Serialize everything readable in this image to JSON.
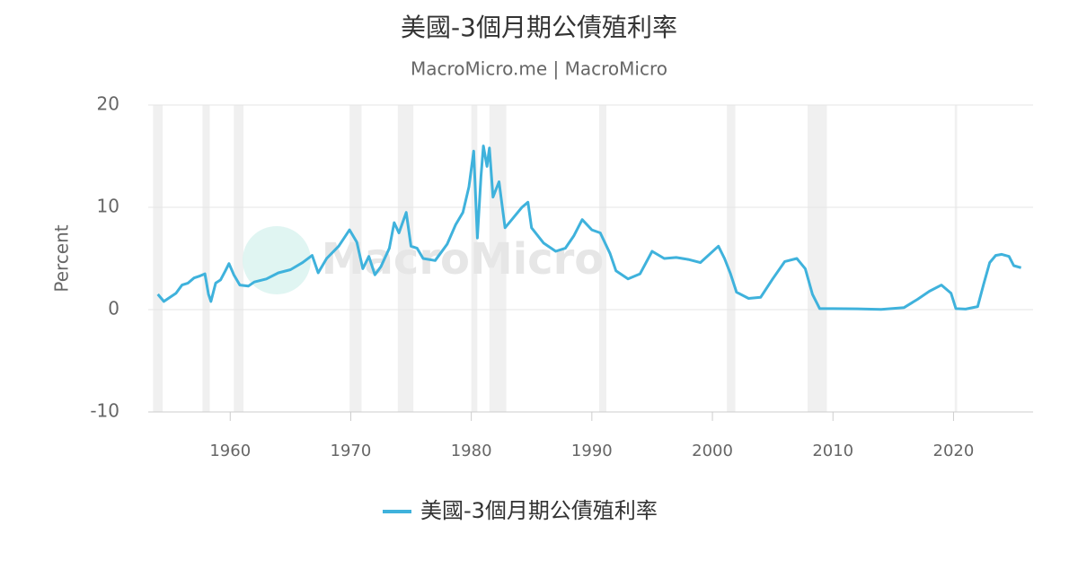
{
  "chart_data": {
    "type": "line",
    "title": "美國-3個月期公債殖利率",
    "subtitle": "MacroMicro.me | MacroMicro",
    "watermark": "MacroMicro",
    "ylabel": "Percent",
    "xlim": [
      1953.2,
      2026.6
    ],
    "xticks": [
      1960,
      1970,
      1980,
      1990,
      2000,
      2010,
      2020
    ],
    "ylim": [
      -10,
      20
    ],
    "yticks": [
      -10,
      0,
      10,
      20
    ],
    "grid": true,
    "legend": "bottom",
    "recessions": [
      [
        1953.6,
        1954.4
      ],
      [
        1957.7,
        1958.3
      ],
      [
        1960.3,
        1961.1
      ],
      [
        1969.9,
        1970.9
      ],
      [
        1973.9,
        1975.2
      ],
      [
        1980.0,
        1980.5
      ],
      [
        1981.5,
        1982.9
      ],
      [
        1990.6,
        1991.2
      ],
      [
        2001.2,
        2001.9
      ],
      [
        2007.9,
        2009.5
      ],
      [
        2020.1,
        2020.3
      ]
    ],
    "recession_color": "#f0f0f0",
    "x": [
      1954.0,
      1954.5,
      1955.0,
      1955.5,
      1956,
      1956.5,
      1957,
      1957.5,
      1957.9,
      1958.2,
      1958.4,
      1958.8,
      1959.2,
      1959.6,
      1959.9,
      1960.3,
      1960.8,
      1961.5,
      1962,
      1963,
      1964,
      1965,
      1966,
      1966.8,
      1967.3,
      1968,
      1969,
      1969.9,
      1970.5,
      1971,
      1971.5,
      1972,
      1972.5,
      1973.2,
      1973.6,
      1974.0,
      1974.6,
      1975.0,
      1975.5,
      1976,
      1977,
      1977.5,
      1978,
      1978.7,
      1979.3,
      1979.8,
      1980.2,
      1980.5,
      1980.8,
      1981.0,
      1981.3,
      1981.5,
      1981.8,
      1982.3,
      1982.8,
      1983.5,
      1984.2,
      1984.7,
      1985,
      1986,
      1987,
      1987.8,
      1988.5,
      1989.2,
      1990,
      1990.7,
      1991.5,
      1992,
      1993,
      1994,
      1995,
      1996,
      1997,
      1998,
      1999,
      2000.5,
      2001,
      2001.5,
      2002,
      2003,
      2004,
      2005,
      2006,
      2007,
      2007.7,
      2008.3,
      2008.9,
      2010,
      2012,
      2014,
      2015.9,
      2017,
      2018,
      2019,
      2019.8,
      2020.2,
      2021,
      2022,
      2022.5,
      2023,
      2023.5,
      2024,
      2024.6,
      2025,
      2025.6
    ],
    "series": [
      {
        "name": "美國-3個月期公債殖利率",
        "color": "#3fb2dc",
        "values": [
          1.5,
          0.8,
          1.2,
          1.6,
          2.4,
          2.6,
          3.1,
          3.3,
          3.5,
          1.5,
          0.8,
          2.6,
          2.9,
          3.8,
          4.5,
          3.4,
          2.4,
          2.3,
          2.7,
          3.0,
          3.6,
          3.9,
          4.6,
          5.3,
          3.6,
          5.0,
          6.2,
          7.8,
          6.6,
          4.0,
          5.2,
          3.4,
          4.2,
          6.0,
          8.5,
          7.5,
          9.5,
          6.2,
          6.0,
          5.0,
          4.8,
          5.6,
          6.4,
          8.3,
          9.5,
          12.0,
          15.5,
          7.0,
          13.0,
          16.0,
          14.0,
          15.8,
          11.0,
          12.5,
          8.0,
          9.0,
          10.0,
          10.5,
          8.0,
          6.5,
          5.7,
          6.0,
          7.2,
          8.8,
          7.8,
          7.5,
          5.5,
          3.8,
          3.0,
          3.5,
          5.7,
          5.0,
          5.1,
          4.9,
          4.6,
          6.2,
          5.0,
          3.5,
          1.7,
          1.1,
          1.2,
          3.0,
          4.7,
          5.0,
          4.0,
          1.5,
          0.1,
          0.1,
          0.08,
          0.03,
          0.2,
          1.0,
          1.8,
          2.4,
          1.6,
          0.1,
          0.05,
          0.3,
          2.5,
          4.6,
          5.3,
          5.4,
          5.2,
          4.3,
          4.1
        ]
      }
    ]
  }
}
